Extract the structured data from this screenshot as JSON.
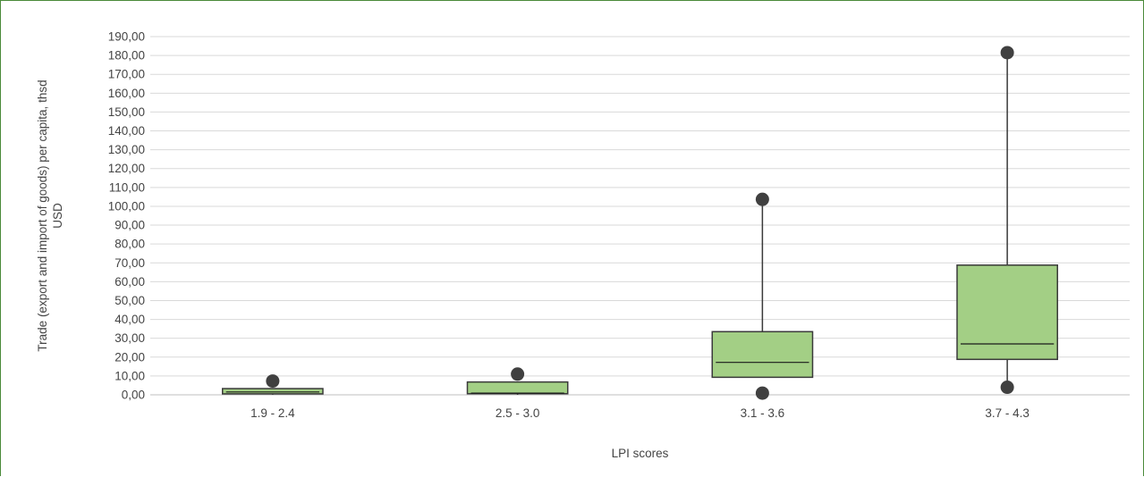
{
  "chart_data": {
    "type": "box",
    "title": "",
    "xlabel": "LPI scores",
    "ylabel_lines": [
      "Trade (export and import of goods) per capita, thsd",
      "USD"
    ],
    "ylim": [
      0,
      190
    ],
    "ytick_step": 10,
    "ytick_labels": [
      "0,00",
      "10,00",
      "20,00",
      "30,00",
      "40,00",
      "50,00",
      "60,00",
      "70,00",
      "80,00",
      "90,00",
      "100,00",
      "110,00",
      "120,00",
      "130,00",
      "140,00",
      "150,00",
      "160,00",
      "170,00",
      "180,00",
      "190,00"
    ],
    "grid": true,
    "colors": {
      "box_fill": "#a3cf85",
      "box_stroke": "#3a3a3a",
      "outlier": "#404040",
      "grid": "#d9d9d9"
    },
    "categories": [
      "1.9 - 2.4",
      "2.5 - 3.0",
      "3.1 - 3.6",
      "3.7 - 4.3"
    ],
    "boxes": [
      {
        "category": "1.9 - 2.4",
        "whisker_low": 0.0,
        "q1": 0.5,
        "median": 1.5,
        "q3": 3.3,
        "whisker_high": 3.3,
        "outliers": [
          7.3
        ]
      },
      {
        "category": "2.5 - 3.0",
        "whisker_low": 0.0,
        "q1": 0.6,
        "median": 0.9,
        "q3": 6.8,
        "whisker_high": 6.8,
        "outliers": [
          11.0
        ]
      },
      {
        "category": "3.1 - 3.6",
        "whisker_low": 9.3,
        "q1": 9.3,
        "median": 17.2,
        "q3": 33.5,
        "whisker_high": 103.7,
        "outliers": [
          0.9,
          103.7
        ]
      },
      {
        "category": "3.7 - 4.3",
        "whisker_low": 4.0,
        "q1": 18.8,
        "median": 27.0,
        "q3": 68.8,
        "whisker_high": 181.5,
        "outliers": [
          4.0,
          181.5
        ]
      }
    ]
  }
}
